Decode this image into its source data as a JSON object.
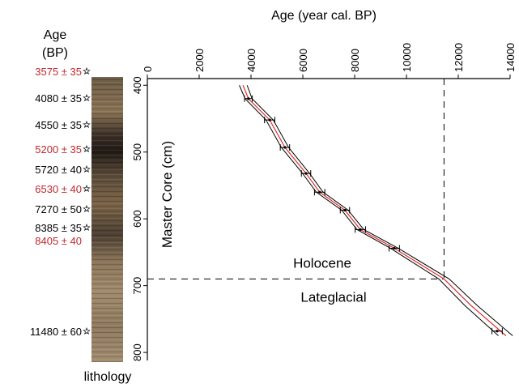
{
  "chart_data": {
    "type": "line",
    "x_label": "Age (year cal. BP)",
    "y_label": "Master Core (cm)",
    "xlim": [
      0,
      14000
    ],
    "xticks": [
      0,
      2000,
      4000,
      6000,
      8000,
      10000,
      12000,
      14000
    ],
    "ylim": [
      390,
      812
    ],
    "yticks": [
      400,
      500,
      600,
      700,
      800
    ],
    "y_inverted": true,
    "model": {
      "color": "#e03030",
      "y": [
        400,
        420,
        452,
        493,
        532,
        560,
        587,
        616,
        644,
        690,
        730,
        775
      ],
      "x": [
        3690,
        3900,
        4720,
        5310,
        6125,
        6650,
        7625,
        8220,
        9530,
        11450,
        12500,
        13840
      ],
      "lower_x": [
        3550,
        3770,
        4580,
        5170,
        5990,
        6520,
        7500,
        8090,
        9380,
        11250,
        12260,
        13550
      ],
      "upper_x": [
        3850,
        4040,
        4860,
        5450,
        6260,
        6780,
        7750,
        8350,
        9680,
        11650,
        12740,
        14100
      ]
    },
    "dates": {
      "color": "#000000",
      "y": [
        420,
        452,
        493,
        532,
        560,
        587,
        616,
        644,
        768
      ],
      "x": [
        3900,
        4720,
        5310,
        6125,
        6650,
        7625,
        8220,
        9530,
        13500
      ],
      "xerr": [
        150,
        200,
        180,
        180,
        200,
        180,
        200,
        200,
        200
      ]
    },
    "boundary_age": 11450,
    "boundary_depth": 690,
    "upper_zone": "Holocene",
    "lower_zone": "Lateglacial",
    "age_header": [
      "Age",
      "(BP)"
    ],
    "lithology_label": "lithology",
    "sample_ages": [
      {
        "label": "3575 ± 35",
        "color": "#c0282d",
        "marker": true
      },
      {
        "label": "4080 ± 35",
        "color": "#000000",
        "marker": true
      },
      {
        "label": "4550 ± 35",
        "color": "#000000",
        "marker": true
      },
      {
        "label": "5200 ± 35",
        "color": "#c0282d",
        "marker": true
      },
      {
        "label": "5720 ± 40",
        "color": "#000000",
        "marker": true
      },
      {
        "label": "6530 ± 40",
        "color": "#c0282d",
        "marker": true
      },
      {
        "label": "7270 ± 50",
        "color": "#000000",
        "marker": true
      },
      {
        "label": "8385 ± 35",
        "color": "#000000",
        "marker": true
      },
      {
        "label": "8405 ± 40",
        "color": "#c0282d",
        "marker": false
      },
      {
        "label": "11480 ± 60",
        "color": "#000000",
        "marker": true
      }
    ]
  }
}
